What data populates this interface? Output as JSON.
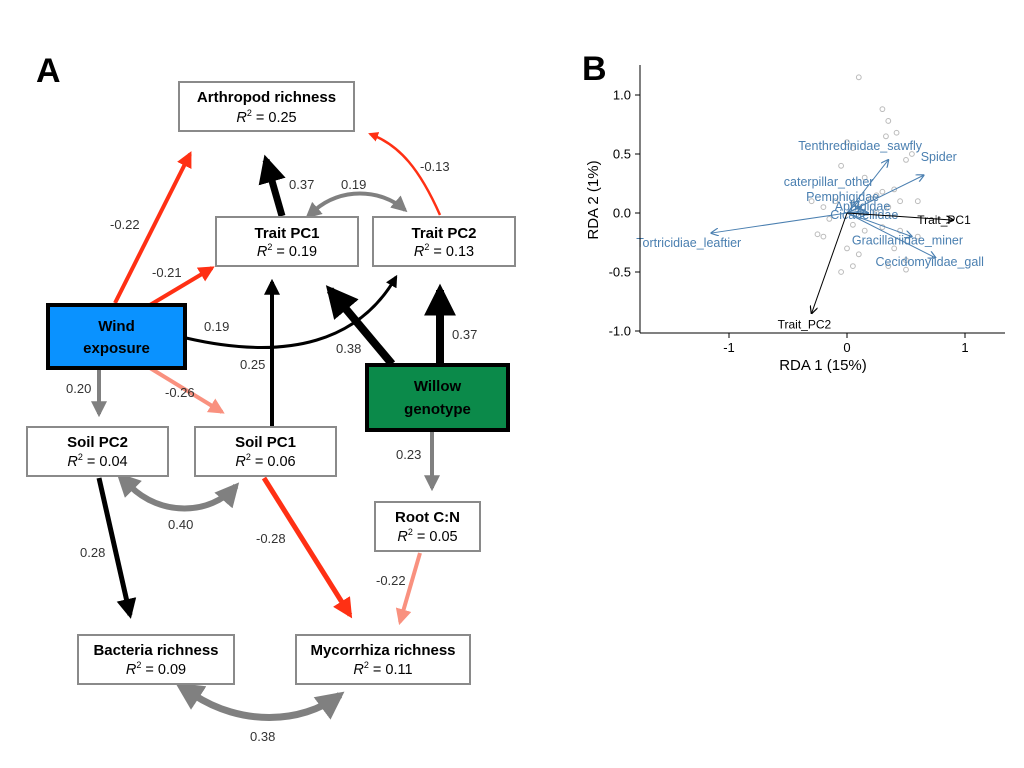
{
  "panel_a": {
    "letter": "A",
    "nodes": [
      {
        "id": "arthropod",
        "title": "Arthropod richness",
        "r2_label": "R",
        "r2_sup": "2",
        "r2_value": " = 0.25"
      },
      {
        "id": "traitpc1",
        "title": "Trait PC1",
        "r2_label": "R",
        "r2_sup": "2",
        "r2_value": " = 0.19"
      },
      {
        "id": "traitpc2",
        "title": "Trait PC2",
        "r2_label": "R",
        "r2_sup": "2",
        "r2_value": " = 0.13"
      },
      {
        "id": "wind",
        "title": "Wind",
        "title2": "exposure"
      },
      {
        "id": "willow",
        "title": "Willow",
        "title2": "genotype"
      },
      {
        "id": "soilpc2",
        "title": "Soil PC2",
        "r2_label": "R",
        "r2_sup": "2",
        "r2_value": " = 0.04"
      },
      {
        "id": "soilpc1",
        "title": "Soil PC1",
        "r2_label": "R",
        "r2_sup": "2",
        "r2_value": " = 0.06"
      },
      {
        "id": "rootcn",
        "title": "Root C:N",
        "r2_label": "R",
        "r2_sup": "2",
        "r2_value": " = 0.05"
      },
      {
        "id": "bacteria",
        "title": "Bacteria richness",
        "r2_label": "R",
        "r2_sup": "2",
        "r2_value": " = 0.09"
      },
      {
        "id": "mycorrhiza",
        "title": "Mycorrhiza richness",
        "r2_label": "R",
        "r2_sup": "2",
        "r2_value": " = 0.11"
      }
    ],
    "edges": [
      {
        "from": "wind",
        "to": "arthropod",
        "coef": "-0.22"
      },
      {
        "from": "wind",
        "to": "traitpc1",
        "coef": "-0.21"
      },
      {
        "from": "wind",
        "to": "traitpc2",
        "coef": "0.19"
      },
      {
        "from": "wind",
        "to": "soilpc2",
        "coef": "0.20"
      },
      {
        "from": "wind",
        "to": "soilpc1",
        "coef": "-0.26"
      },
      {
        "from": "traitpc1",
        "to": "arthropod",
        "coef": "0.37"
      },
      {
        "from": "traitpc2",
        "to": "arthropod",
        "coef": "-0.13"
      },
      {
        "from": "traitpc1",
        "to": "traitpc2",
        "coef": "0.19",
        "type": "covariance"
      },
      {
        "from": "soilpc1",
        "to": "traitpc1",
        "coef": "0.25"
      },
      {
        "from": "willow",
        "to": "traitpc1",
        "coef": "0.38"
      },
      {
        "from": "willow",
        "to": "traitpc2",
        "coef": "0.37"
      },
      {
        "from": "willow",
        "to": "rootcn",
        "coef": "0.23"
      },
      {
        "from": "soilpc2",
        "to": "soilpc1",
        "coef": "0.40",
        "type": "covariance"
      },
      {
        "from": "soilpc2",
        "to": "bacteria",
        "coef": "0.28"
      },
      {
        "from": "soilpc1",
        "to": "mycorrhiza",
        "coef": "-0.28"
      },
      {
        "from": "rootcn",
        "to": "mycorrhiza",
        "coef": "-0.22"
      },
      {
        "from": "bacteria",
        "to": "mycorrhiza",
        "coef": "0.38",
        "type": "covariance"
      }
    ],
    "colors": {
      "positive": "#000000",
      "positive_weak": "#808080",
      "negative": "#ff3014",
      "negative_weak": "#f9917f",
      "wind_fill": "#0a92ff",
      "willow_fill": "#0b8a4a"
    }
  },
  "panel_b": {
    "letter": "B",
    "chart_data": {
      "type": "scatter",
      "xlabel": "RDA 1 (15%)",
      "ylabel": "RDA 2 (1%)",
      "xlim": [
        -1.7,
        1.35
      ],
      "ylim": [
        -1.0,
        1.25
      ],
      "x_ticks": [
        -1,
        0,
        1
      ],
      "x_tick_labels": [
        "-1",
        "0",
        "1"
      ],
      "y_ticks": [
        -1.0,
        -0.5,
        0.0,
        0.5,
        1.0
      ],
      "y_tick_labels": [
        "-1.0",
        "-0.5",
        "0.0",
        "0.5",
        "1.0"
      ],
      "points": [
        [
          0.1,
          1.15
        ],
        [
          0.3,
          0.88
        ],
        [
          0.35,
          0.78
        ],
        [
          0.42,
          0.68
        ],
        [
          0.33,
          0.65
        ],
        [
          0.0,
          0.6
        ],
        [
          0.05,
          0.55
        ],
        [
          0.5,
          0.45
        ],
        [
          0.55,
          0.5
        ],
        [
          -0.05,
          0.4
        ],
        [
          0.15,
          0.3
        ],
        [
          0.4,
          0.2
        ],
        [
          0.25,
          0.15
        ],
        [
          0.3,
          0.18
        ],
        [
          0.2,
          0.12
        ],
        [
          0.05,
          0.08
        ],
        [
          0.1,
          0.05
        ],
        [
          -0.1,
          0.1
        ],
        [
          -0.2,
          0.05
        ],
        [
          -0.15,
          -0.05
        ],
        [
          0.05,
          -0.1
        ],
        [
          0.15,
          -0.15
        ],
        [
          0.3,
          -0.12
        ],
        [
          0.45,
          -0.15
        ],
        [
          -0.2,
          -0.2
        ],
        [
          -0.25,
          -0.18
        ],
        [
          0.0,
          -0.3
        ],
        [
          0.1,
          -0.35
        ],
        [
          0.05,
          -0.45
        ],
        [
          0.4,
          -0.3
        ],
        [
          0.5,
          -0.4
        ],
        [
          0.5,
          -0.48
        ],
        [
          0.35,
          -0.45
        ],
        [
          0.6,
          -0.2
        ],
        [
          -0.05,
          -0.5
        ],
        [
          0.25,
          0.0
        ],
        [
          0.35,
          0.05
        ],
        [
          -0.3,
          0.1
        ],
        [
          0.45,
          0.1
        ],
        [
          0.6,
          0.1
        ]
      ],
      "species": [
        {
          "name": "Tenthredinidae_sawfly",
          "x": 0.35,
          "y": 0.45
        },
        {
          "name": "Spider",
          "x": 0.65,
          "y": 0.32
        },
        {
          "name": "caterpillar_other",
          "x": 0.1,
          "y": 0.1
        },
        {
          "name": "Tortricidiae_leaftier",
          "x": -1.15,
          "y": -0.17
        },
        {
          "name": "Gracillariidae_miner",
          "x": 0.55,
          "y": -0.2
        },
        {
          "name": "Cecidomyiidae_gall",
          "x": 0.75,
          "y": -0.38
        },
        {
          "name": "Pemphigidae",
          "x": 0.12,
          "y": 0.05
        },
        {
          "name": "Aphididae",
          "x": 0.15,
          "y": 0.02
        },
        {
          "name": "Cicadellidae",
          "x": 0.18,
          "y": 0.0
        }
      ],
      "traits": [
        {
          "name": "Trait_PC1",
          "x": 0.9,
          "y": -0.06
        },
        {
          "name": "Trait_PC2",
          "x": -0.3,
          "y": -0.85
        }
      ],
      "colors": {
        "species": "#4a7fb0",
        "trait": "#000000",
        "points": "#bbbbbb"
      }
    }
  }
}
